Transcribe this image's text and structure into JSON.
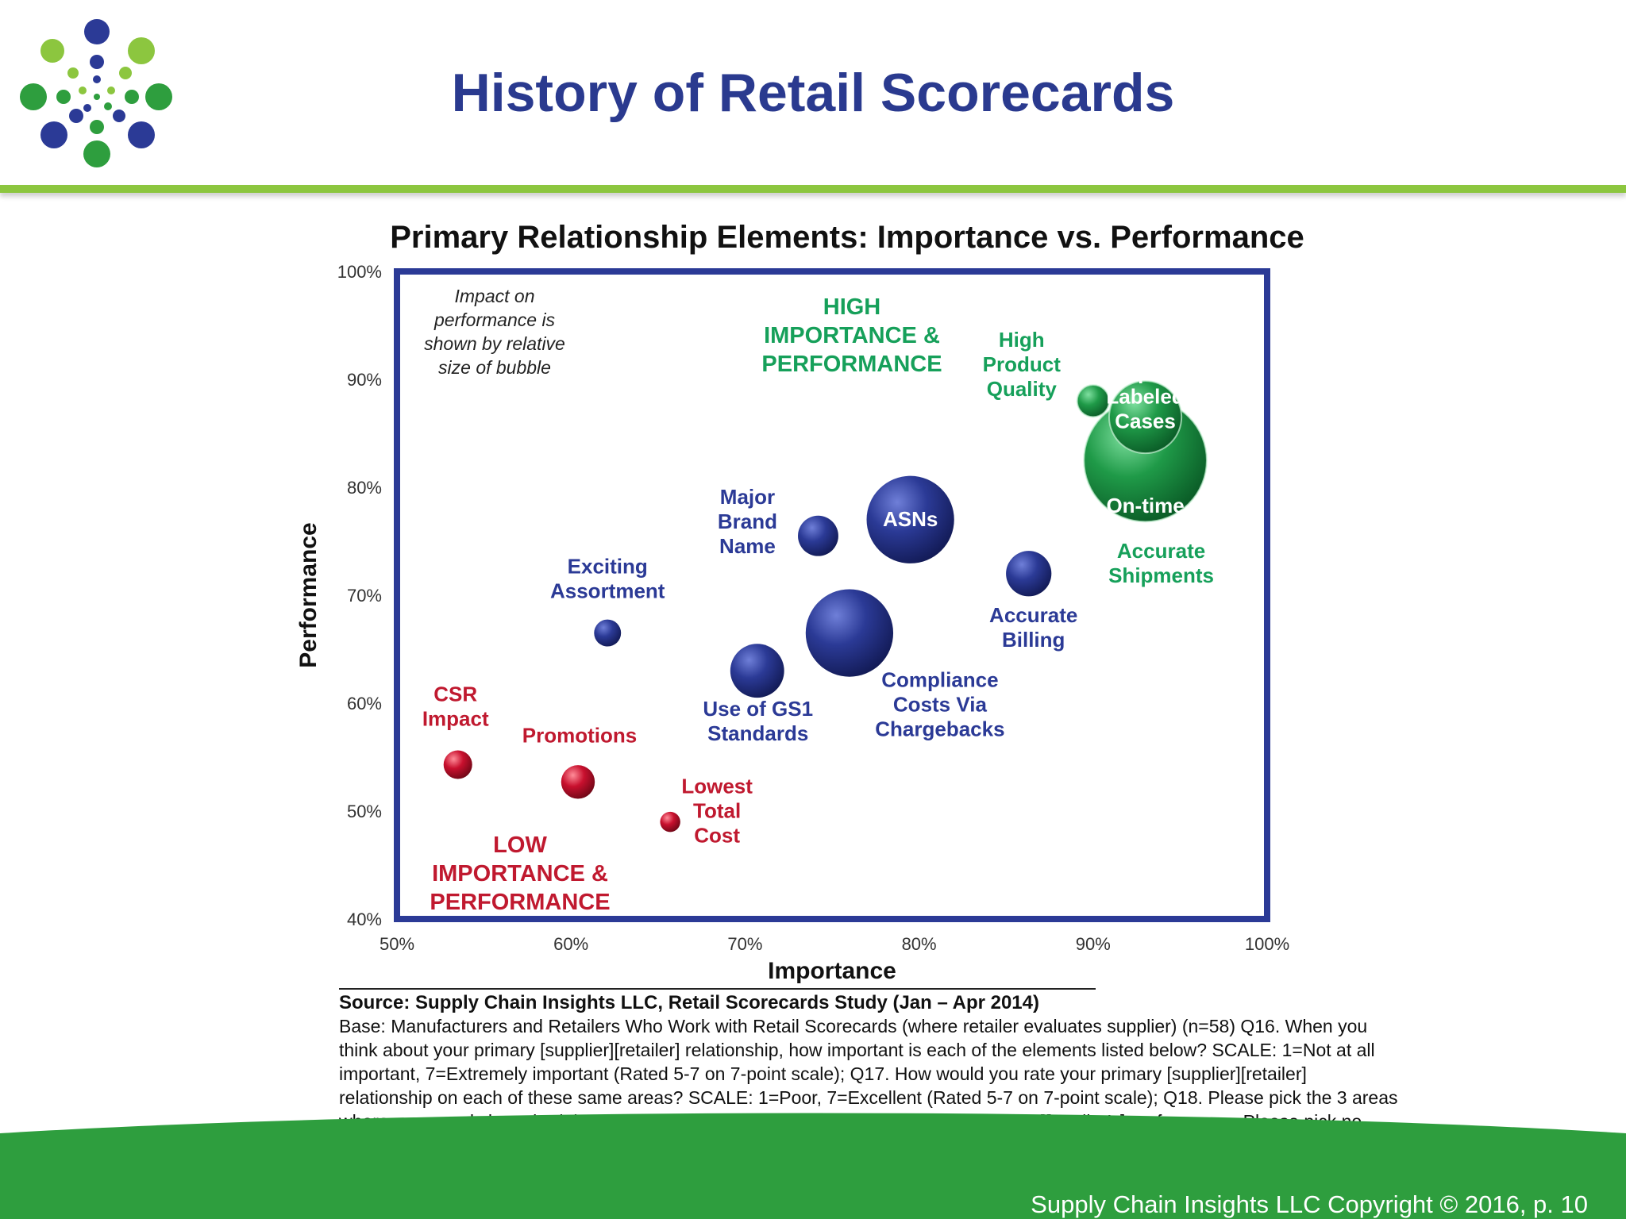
{
  "slide": {
    "title": "History of Retail Scorecards",
    "footer": "Supply Chain Insights LLC Copyright © 2016, p. 10",
    "logo_icon": "dot-burst-logo-icon"
  },
  "colors": {
    "title_blue": "#2a3a8f",
    "accent_green": "#8cc63f",
    "footer_green": "#2e9e3e",
    "bubble_blue": "#2b3a96",
    "bubble_green": "#1f9a48",
    "bubble_red": "#c8102e",
    "label_green": "#16a05a",
    "label_red": "#c0192f",
    "frame_blue": "#2b3a96"
  },
  "chart_data": {
    "type": "bubble",
    "title": "Primary Relationship Elements: Importance vs. Performance",
    "xlabel": "Importance",
    "ylabel": "Performance",
    "xlim": [
      50,
      100
    ],
    "ylim": [
      40,
      100
    ],
    "x_ticks": [
      "50%",
      "60%",
      "70%",
      "80%",
      "90%",
      "100%"
    ],
    "y_ticks": [
      "40%",
      "50%",
      "60%",
      "70%",
      "80%",
      "90%",
      "100%"
    ],
    "grid": false,
    "bubble_size_note": "Impact on performance is shown by relative size of bubble",
    "quadrant_labels": {
      "high": "HIGH IMPORTANCE & PERFORMANCE",
      "low": "LOW IMPORTANCE & PERFORMANCE"
    },
    "points": [
      {
        "label": "On-time Accurate Shipments",
        "x": 93,
        "y": 82.5,
        "size": 7.3,
        "group": "high"
      },
      {
        "label": "Properly Labeled Cases",
        "x": 93,
        "y": 86.5,
        "size": 4.3,
        "group": "high"
      },
      {
        "label": "High Product Quality",
        "x": 90,
        "y": 88,
        "size": 1.9,
        "group": "high"
      },
      {
        "label": "ASNs",
        "x": 79.5,
        "y": 77,
        "size": 5.2,
        "group": "mid"
      },
      {
        "label": "Major Brand Name",
        "x": 74.2,
        "y": 75.5,
        "size": 2.4,
        "group": "mid"
      },
      {
        "label": "Accurate Billing",
        "x": 86.3,
        "y": 72,
        "size": 2.7,
        "group": "mid"
      },
      {
        "label": "Compliance Costs Via Chargebacks",
        "x": 76,
        "y": 66.5,
        "size": 5.2,
        "group": "mid"
      },
      {
        "label": "Use of GS1 Standards",
        "x": 70.7,
        "y": 63,
        "size": 3.2,
        "group": "mid"
      },
      {
        "label": "Exciting Assortment",
        "x": 62.1,
        "y": 66.5,
        "size": 1.6,
        "group": "mid"
      },
      {
        "label": "CSR Impact",
        "x": 53.5,
        "y": 54.3,
        "size": 1.7,
        "group": "low"
      },
      {
        "label": "Promotions",
        "x": 60.4,
        "y": 52.7,
        "size": 2.0,
        "group": "low"
      },
      {
        "label": "Lowest Total Cost",
        "x": 65.7,
        "y": 49,
        "size": 1.2,
        "group": "low"
      }
    ]
  },
  "source": {
    "line": "Source: Supply Chain Insights LLC, Retail Scorecards Study (Jan – Apr 2014)",
    "notes": "Base: Manufacturers and Retailers Who Work with Retail Scorecards (where retailer evaluates supplier) (n=58) Q16. When you think about your primary [supplier][retailer] relationship, how important is each of the elements listed below? SCALE: 1=Not at all important, 7=Extremely important (Rated 5-7 on 7-point scale); Q17. How would you rate your primary [supplier][retailer] relationship on each of these same areas? SCALE: 1=Poor, 7=Excellent (Rated 5-7 on 7-point scale); Q18. Please pick the 3 areas where scorecards have had the greatest positive impact on the your primary [supplier’s][retailer’s] performance. Please pick no more than three."
  }
}
